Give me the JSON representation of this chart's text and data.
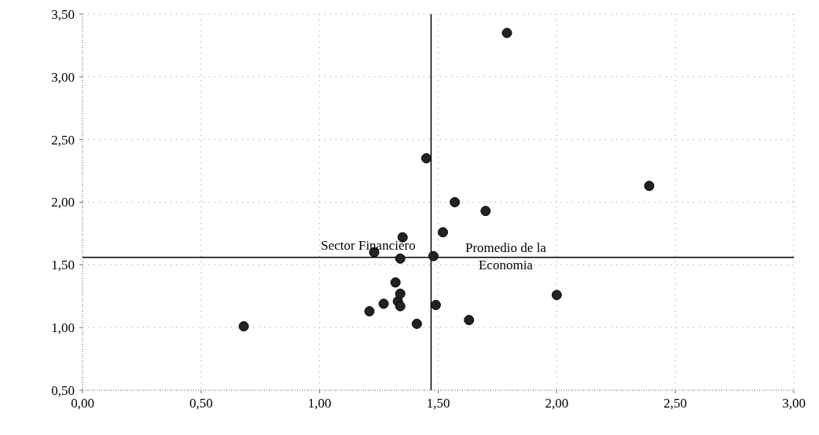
{
  "chart_data": {
    "type": "scatter",
    "marker": "circle",
    "grid": true,
    "xlim": [
      0,
      3
    ],
    "ylim": [
      0.5,
      3.5
    ],
    "xticks": [
      {
        "value": 0,
        "label": "0,00"
      },
      {
        "value": 0.5,
        "label": "0,50"
      },
      {
        "value": 1,
        "label": "1,00"
      },
      {
        "value": 1.5,
        "label": "1,50"
      },
      {
        "value": 2,
        "label": "2,00"
      },
      {
        "value": 2.5,
        "label": "2,50"
      },
      {
        "value": 3,
        "label": "3,00"
      }
    ],
    "yticks": [
      {
        "value": 0.5,
        "label": "0,50"
      },
      {
        "value": 1,
        "label": "1,00"
      },
      {
        "value": 1.5,
        "label": "1,50"
      },
      {
        "value": 2,
        "label": "2,00"
      },
      {
        "value": 2.5,
        "label": "2,50"
      },
      {
        "value": 3,
        "label": "3,00"
      },
      {
        "value": 3.5,
        "label": "3,50"
      }
    ],
    "series": [
      {
        "color": "#222222",
        "x": [
          0.68,
          1.21,
          1.27,
          1.23,
          1.32,
          1.34,
          1.33,
          1.34,
          1.34,
          1.35,
          1.41,
          1.45,
          1.48,
          1.49,
          1.52,
          1.57,
          1.63,
          1.7,
          1.79,
          2.0,
          2.39
        ],
        "values": [
          1.01,
          1.13,
          1.19,
          1.6,
          1.36,
          1.55,
          1.21,
          1.17,
          1.27,
          1.72,
          1.03,
          2.35,
          1.57,
          1.18,
          1.76,
          2.0,
          1.06,
          1.93,
          3.35,
          1.26,
          2.13
        ]
      }
    ],
    "ref_lines": [
      {
        "axis": "x",
        "value": 1.47,
        "label": "Sector Financiero",
        "color": "#000000"
      },
      {
        "axis": "y",
        "value": 1.56,
        "label": "Promedio de la Economia",
        "color": "#000000"
      }
    ]
  }
}
